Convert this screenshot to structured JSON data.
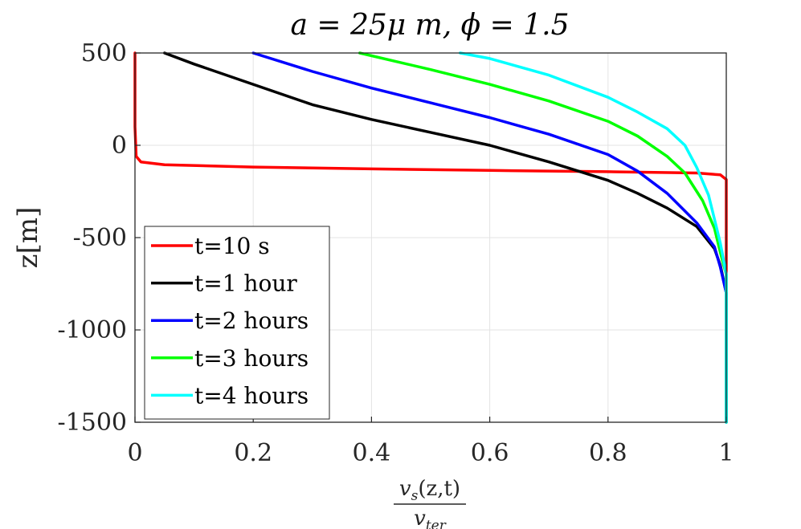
{
  "chart_data": {
    "type": "line",
    "title": "a = 25μ m, ϕ = 1.5",
    "xlabel": {
      "numerator": "v",
      "numerator_sub": "s",
      "numerator_args": "(z,t)",
      "denominator": "v",
      "denominator_sub": "ter"
    },
    "ylabel": "z[m]",
    "xlim": [
      0,
      1
    ],
    "ylim": [
      -1500,
      500
    ],
    "xticks": [
      "0",
      "0.2",
      "0.4",
      "0.6",
      "0.8",
      "1"
    ],
    "xtick_values": [
      0,
      0.2,
      0.4,
      0.6,
      0.8,
      1
    ],
    "yticks": [
      "500",
      "0",
      "-500",
      "-1000",
      "-1500"
    ],
    "ytick_values": [
      500,
      0,
      -500,
      -1000,
      -1500
    ],
    "grid": true,
    "legend_position": "bottom-left",
    "series": [
      {
        "name": "t=10 s",
        "color": "#ff0000",
        "points": [
          [
            0,
            500
          ],
          [
            0,
            100
          ],
          [
            0.002,
            -60
          ],
          [
            0.01,
            -90
          ],
          [
            0.05,
            -105
          ],
          [
            0.2,
            -118
          ],
          [
            0.4,
            -128
          ],
          [
            0.6,
            -136
          ],
          [
            0.8,
            -143
          ],
          [
            0.95,
            -150
          ],
          [
            0.99,
            -160
          ],
          [
            1.0,
            -185
          ],
          [
            1.0,
            -400
          ],
          [
            1.0,
            -1500
          ]
        ]
      },
      {
        "name": "t=1 hour",
        "color": "#000000",
        "points": [
          [
            0.05,
            500
          ],
          [
            0.1,
            440
          ],
          [
            0.2,
            330
          ],
          [
            0.3,
            220
          ],
          [
            0.4,
            140
          ],
          [
            0.5,
            70
          ],
          [
            0.6,
            0
          ],
          [
            0.7,
            -90
          ],
          [
            0.8,
            -190
          ],
          [
            0.85,
            -260
          ],
          [
            0.9,
            -340
          ],
          [
            0.95,
            -440
          ],
          [
            0.98,
            -560
          ],
          [
            0.99,
            -650
          ],
          [
            1.0,
            -800
          ],
          [
            1.0,
            -1000
          ],
          [
            1.0,
            -1500
          ]
        ]
      },
      {
        "name": "t=2 hours",
        "color": "#0000ff",
        "points": [
          [
            0.2,
            500
          ],
          [
            0.3,
            400
          ],
          [
            0.4,
            310
          ],
          [
            0.5,
            230
          ],
          [
            0.6,
            150
          ],
          [
            0.7,
            60
          ],
          [
            0.8,
            -50
          ],
          [
            0.85,
            -140
          ],
          [
            0.9,
            -260
          ],
          [
            0.95,
            -420
          ],
          [
            0.98,
            -550
          ],
          [
            0.99,
            -660
          ],
          [
            1.0,
            -800
          ],
          [
            1.0,
            -1000
          ],
          [
            1.0,
            -1500
          ]
        ]
      },
      {
        "name": "t=3 hours",
        "color": "#00ff00",
        "points": [
          [
            0.38,
            500
          ],
          [
            0.5,
            410
          ],
          [
            0.6,
            330
          ],
          [
            0.7,
            240
          ],
          [
            0.8,
            130
          ],
          [
            0.85,
            50
          ],
          [
            0.9,
            -60
          ],
          [
            0.93,
            -150
          ],
          [
            0.96,
            -300
          ],
          [
            0.98,
            -450
          ],
          [
            0.99,
            -580
          ],
          [
            1.0,
            -700
          ],
          [
            1.0,
            -1000
          ],
          [
            1.0,
            -1500
          ]
        ]
      },
      {
        "name": "t=4 hours",
        "color": "#00ffff",
        "points": [
          [
            0.55,
            500
          ],
          [
            0.6,
            470
          ],
          [
            0.7,
            380
          ],
          [
            0.8,
            260
          ],
          [
            0.85,
            180
          ],
          [
            0.9,
            90
          ],
          [
            0.93,
            0
          ],
          [
            0.95,
            -120
          ],
          [
            0.97,
            -270
          ],
          [
            0.98,
            -400
          ],
          [
            0.99,
            -530
          ],
          [
            1.0,
            -700
          ],
          [
            1.0,
            -1000
          ],
          [
            1.0,
            -1500
          ]
        ]
      }
    ]
  }
}
